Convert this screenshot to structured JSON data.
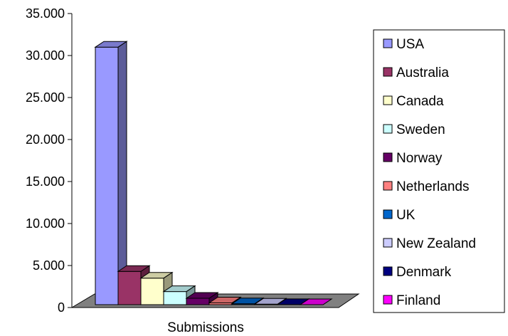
{
  "chart_data": {
    "type": "bar",
    "categories": [
      "Submissions"
    ],
    "series": [
      {
        "name": "USA",
        "values": [
          31000
        ],
        "color": "#9999ff"
      },
      {
        "name": "Australia",
        "values": [
          4300
        ],
        "color": "#993366"
      },
      {
        "name": "Canada",
        "values": [
          3500
        ],
        "color": "#ffffcc"
      },
      {
        "name": "Sweden",
        "values": [
          1900
        ],
        "color": "#ccffff"
      },
      {
        "name": "Norway",
        "values": [
          1100
        ],
        "color": "#660066"
      },
      {
        "name": "Netherlands",
        "values": [
          550
        ],
        "color": "#ff8080"
      },
      {
        "name": "UK",
        "values": [
          450
        ],
        "color": "#0066cc"
      },
      {
        "name": "New Zealand",
        "values": [
          400
        ],
        "color": "#ccccff"
      },
      {
        "name": "Denmark",
        "values": [
          350
        ],
        "color": "#000080"
      },
      {
        "name": "Finland",
        "values": [
          300
        ],
        "color": "#ff00ff"
      }
    ],
    "y_ticks": [
      "0",
      "5.000",
      "10.000",
      "15.000",
      "20.000",
      "25.000",
      "30.000",
      "35.000"
    ],
    "ylim": [
      0,
      35000
    ],
    "xlabel": "Submissions",
    "ylabel": "",
    "legend_position": "right",
    "grid": false,
    "style": "3d-column"
  }
}
